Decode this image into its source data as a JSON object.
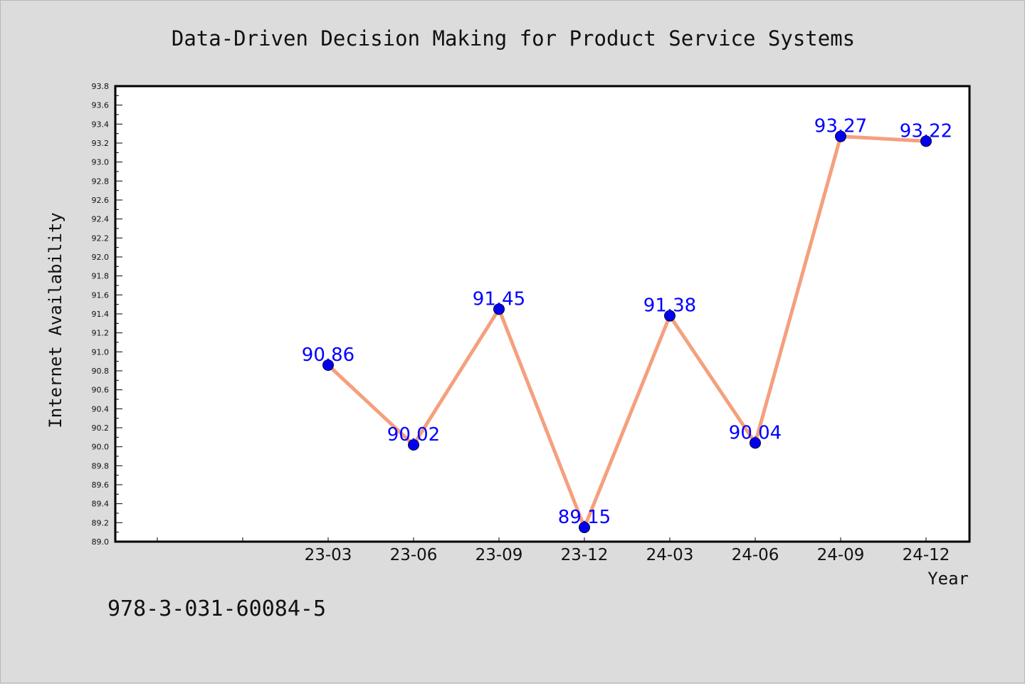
{
  "chart_data": {
    "type": "line",
    "title": "Data-Driven Decision Making for Product Service Systems",
    "xlabel": "Year",
    "ylabel": "Internet Availability",
    "categories": [
      "23-03",
      "23-06",
      "23-09",
      "23-12",
      "24-03",
      "24-06",
      "24-09",
      "24-12"
    ],
    "series": [
      {
        "values": [
          90.86,
          90.02,
          91.45,
          89.15,
          91.38,
          90.04,
          93.27,
          93.22
        ],
        "color": "#f4a07e",
        "marker_color": "#0000ee"
      }
    ],
    "data_labels": [
      "90.86",
      "90.02",
      "91.45",
      "89.15",
      "91.38",
      "90.04",
      "93.27",
      "93.22"
    ],
    "ylim": [
      89.0,
      93.8
    ],
    "yticks": [
      "89.0",
      "89.2",
      "89.4",
      "89.6",
      "89.8",
      "90.0",
      "90.2",
      "90.4",
      "90.6",
      "90.8",
      "91.0",
      "91.2",
      "91.4",
      "91.6",
      "91.8",
      "92.0",
      "92.2",
      "92.4",
      "92.6",
      "92.8",
      "93.0",
      "93.2",
      "93.4",
      "93.6",
      "93.8"
    ],
    "grid": false,
    "legend": "none"
  },
  "footer": {
    "isbn": "978-3-031-60084-5"
  },
  "colors": {
    "background": "#dcdcdc",
    "plot_area": "#ffffff",
    "line": "#f4a07e",
    "marker": "#0000ee",
    "label": "#0000ff"
  }
}
